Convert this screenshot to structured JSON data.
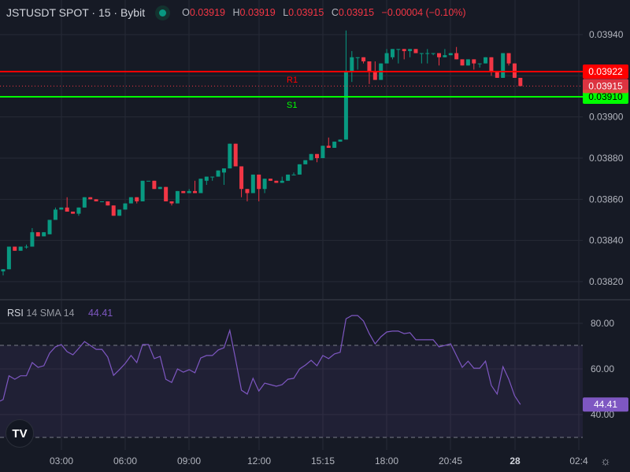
{
  "header": {
    "symbol": "JSTUSDT SPOT · 15 · Bybit",
    "status_color": "#089981",
    "ohlc": {
      "o_label": "O",
      "o": "0.03919",
      "h_label": "H",
      "h": "0.03919",
      "l_label": "L",
      "l": "0.03915",
      "c_label": "C",
      "c": "0.03915",
      "change": "−0.00004 (−0.10%)"
    }
  },
  "rsi_legend": {
    "name": "RSI",
    "params": "14 SMA 14",
    "value": "44.41"
  },
  "colors": {
    "up": "#089981",
    "down": "#f23645",
    "rsi": "#7e57c2",
    "resistance": "#ff0000",
    "support": "#00ff00",
    "background": "#161a25",
    "grid": "#262a36"
  },
  "chart_data": [
    {
      "type": "candlestick",
      "ylim": [
        0.0381,
        0.03955
      ],
      "grid": true,
      "y_ticks": [
        "0.03940",
        "0.03900",
        "0.03880",
        "0.03860",
        "0.03840",
        "0.03820"
      ],
      "x_ticks": [
        "03:00",
        "06:00",
        "09:00",
        "12:00",
        "15:15",
        "18:00",
        "20:45",
        "28",
        "02:4"
      ],
      "last_price": {
        "value": 0.03915,
        "label": "0.03915"
      },
      "levels": [
        {
          "name": "R1",
          "value": 0.03922,
          "label": "0.03922",
          "color": "#ff0000"
        },
        {
          "name": "S1",
          "value": 0.0391,
          "label": "0.03910",
          "color": "#00ff00"
        }
      ],
      "ohlc": [
        [
          0.03825,
          0.03826,
          0.03823,
          0.03826
        ],
        [
          0.03826,
          0.03837,
          0.03826,
          0.03837
        ],
        [
          0.03837,
          0.03837,
          0.03835,
          0.03835
        ],
        [
          0.03835,
          0.03837,
          0.03835,
          0.03837
        ],
        [
          0.03837,
          0.03838,
          0.03836,
          0.03837
        ],
        [
          0.03837,
          0.03846,
          0.03837,
          0.03844
        ],
        [
          0.03844,
          0.03844,
          0.03842,
          0.03842
        ],
        [
          0.03842,
          0.03844,
          0.03842,
          0.03844
        ],
        [
          0.03843,
          0.0385,
          0.03843,
          0.0385
        ],
        [
          0.0385,
          0.03856,
          0.0385,
          0.03855
        ],
        [
          0.03855,
          0.03856,
          0.03855,
          0.03856
        ],
        [
          0.03856,
          0.03861,
          0.03854,
          0.03854
        ],
        [
          0.03854,
          0.03854,
          0.03853,
          0.03853
        ],
        [
          0.03853,
          0.03856,
          0.03852,
          0.03856
        ],
        [
          0.03856,
          0.03861,
          0.03856,
          0.03861
        ],
        [
          0.03861,
          0.03861,
          0.0386,
          0.0386
        ],
        [
          0.0386,
          0.0386,
          0.03859,
          0.03859
        ],
        [
          0.03859,
          0.03859,
          0.03859,
          0.03859
        ],
        [
          0.03859,
          0.03859,
          0.03857,
          0.03857
        ],
        [
          0.03857,
          0.03857,
          0.03852,
          0.03852
        ],
        [
          0.03852,
          0.03855,
          0.03852,
          0.03855
        ],
        [
          0.03855,
          0.03858,
          0.03855,
          0.03858
        ],
        [
          0.03858,
          0.03861,
          0.03858,
          0.03861
        ],
        [
          0.03861,
          0.03861,
          0.03858,
          0.03859
        ],
        [
          0.03859,
          0.03869,
          0.03859,
          0.03869
        ],
        [
          0.03869,
          0.03869,
          0.03869,
          0.03869
        ],
        [
          0.03869,
          0.03869,
          0.03865,
          0.03865
        ],
        [
          0.03865,
          0.03866,
          0.03865,
          0.03866
        ],
        [
          0.03866,
          0.03866,
          0.03859,
          0.03859
        ],
        [
          0.03859,
          0.03859,
          0.03857,
          0.03858
        ],
        [
          0.03858,
          0.03864,
          0.03858,
          0.03864
        ],
        [
          0.03864,
          0.03864,
          0.03863,
          0.03863
        ],
        [
          0.03863,
          0.03865,
          0.03863,
          0.03864
        ],
        [
          0.03864,
          0.03869,
          0.03863,
          0.03863
        ],
        [
          0.03863,
          0.0387,
          0.03863,
          0.0387
        ],
        [
          0.03869,
          0.03871,
          0.03867,
          0.03871
        ],
        [
          0.03871,
          0.03871,
          0.03869,
          0.03871
        ],
        [
          0.03871,
          0.03874,
          0.03871,
          0.03874
        ],
        [
          0.03873,
          0.03875,
          0.03867,
          0.03875
        ],
        [
          0.03875,
          0.03887,
          0.03875,
          0.03887
        ],
        [
          0.03887,
          0.03887,
          0.03876,
          0.03876
        ],
        [
          0.03876,
          0.03876,
          0.03861,
          0.03865
        ],
        [
          0.03865,
          0.03865,
          0.03859,
          0.03863
        ],
        [
          0.03863,
          0.03872,
          0.03863,
          0.03872
        ],
        [
          0.03872,
          0.03872,
          0.03859,
          0.03865
        ],
        [
          0.03865,
          0.0387,
          0.03863,
          0.0387
        ],
        [
          0.0387,
          0.0387,
          0.03869,
          0.03869
        ],
        [
          0.03869,
          0.03869,
          0.03868,
          0.03868
        ],
        [
          0.03868,
          0.03871,
          0.03868,
          0.03869
        ],
        [
          0.03869,
          0.03872,
          0.03869,
          0.03872
        ],
        [
          0.03872,
          0.03873,
          0.03872,
          0.03872
        ],
        [
          0.03872,
          0.03877,
          0.03872,
          0.03877
        ],
        [
          0.03877,
          0.03879,
          0.03877,
          0.03879
        ],
        [
          0.03879,
          0.03882,
          0.03879,
          0.03882
        ],
        [
          0.03882,
          0.03882,
          0.03878,
          0.0388
        ],
        [
          0.0388,
          0.03886,
          0.0388,
          0.03886
        ],
        [
          0.03886,
          0.0389,
          0.03885,
          0.03885
        ],
        [
          0.03885,
          0.03888,
          0.03885,
          0.03888
        ],
        [
          0.03888,
          0.03889,
          0.03888,
          0.03889
        ],
        [
          0.03889,
          0.03942,
          0.03889,
          0.03922
        ],
        [
          0.03922,
          0.03932,
          0.03917,
          0.03929
        ],
        [
          0.03929,
          0.03929,
          0.03923,
          0.03929
        ],
        [
          0.03929,
          0.03929,
          0.03926,
          0.03927
        ],
        [
          0.03927,
          0.03927,
          0.03916,
          0.03922
        ],
        [
          0.03922,
          0.03927,
          0.03918,
          0.03918
        ],
        [
          0.03918,
          0.03926,
          0.03918,
          0.03926
        ],
        [
          0.03926,
          0.03933,
          0.03926,
          0.03931
        ],
        [
          0.03929,
          0.03933,
          0.03928,
          0.03933
        ],
        [
          0.03933,
          0.03933,
          0.03926,
          0.03933
        ],
        [
          0.03933,
          0.03933,
          0.03928,
          0.03932
        ],
        [
          0.03932,
          0.03933,
          0.03929,
          0.03933
        ],
        [
          0.03933,
          0.03933,
          0.03931,
          0.03931
        ],
        [
          0.03931,
          0.03931,
          0.03926,
          0.03931
        ],
        [
          0.03931,
          0.03933,
          0.03926,
          0.03931
        ],
        [
          0.03931,
          0.03931,
          0.0393,
          0.03931
        ],
        [
          0.03931,
          0.03931,
          0.03925,
          0.03929
        ],
        [
          0.03929,
          0.03933,
          0.03929,
          0.0393
        ],
        [
          0.0393,
          0.03931,
          0.0393,
          0.03931
        ],
        [
          0.03931,
          0.03934,
          0.03928,
          0.03928
        ],
        [
          0.03928,
          0.03928,
          0.03925,
          0.03925
        ],
        [
          0.03925,
          0.03928,
          0.03925,
          0.03928
        ],
        [
          0.03928,
          0.03928,
          0.03923,
          0.03926
        ],
        [
          0.03926,
          0.03926,
          0.03924,
          0.03926
        ],
        [
          0.03926,
          0.03929,
          0.03926,
          0.03929
        ],
        [
          0.03929,
          0.03929,
          0.0392,
          0.03922
        ],
        [
          0.03922,
          0.03922,
          0.03919,
          0.03919
        ],
        [
          0.03919,
          0.03931,
          0.03919,
          0.03931
        ],
        [
          0.03931,
          0.03931,
          0.03925,
          0.03926
        ],
        [
          0.03926,
          0.03926,
          0.03919,
          0.03919
        ],
        [
          0.03919,
          0.03919,
          0.03915,
          0.03915
        ]
      ]
    },
    {
      "type": "line",
      "name": "RSI",
      "ylim": [
        28,
        90
      ],
      "y_ticks": [
        "80.00",
        "60.00",
        "40.00"
      ],
      "bands": [
        70,
        30
      ],
      "last_label": "44.41",
      "values": [
        45.9,
        46.6,
        57,
        55.5,
        57,
        57,
        62.8,
        60.7,
        61.4,
        66.9,
        69.7,
        70.7,
        67.6,
        66.2,
        69,
        72,
        70.3,
        68.6,
        68.6,
        65.2,
        57.2,
        59.7,
        62.4,
        65.9,
        62.8,
        70.7,
        70.7,
        64.5,
        65.5,
        55.5,
        54.1,
        60,
        58.6,
        59.7,
        58.3,
        64.8,
        65.9,
        65.9,
        68.3,
        69.3,
        76.9,
        64.1,
        50.7,
        49,
        55.9,
        50.3,
        53.8,
        53.1,
        52.4,
        53.1,
        55.5,
        55.9,
        60,
        61.7,
        63.8,
        61.4,
        65.9,
        64.5,
        66.6,
        67.3,
        82,
        83.4,
        83.4,
        81,
        75.5,
        71,
        74.1,
        76.2,
        76.6,
        76.6,
        75.5,
        75.9,
        72.8,
        72.8,
        72.8,
        72.8,
        69.7,
        70.3,
        71,
        65.9,
        60.7,
        63.4,
        60.3,
        60.3,
        63.4,
        52.8,
        49,
        61,
        55.5,
        48.3,
        44.41
      ]
    }
  ]
}
